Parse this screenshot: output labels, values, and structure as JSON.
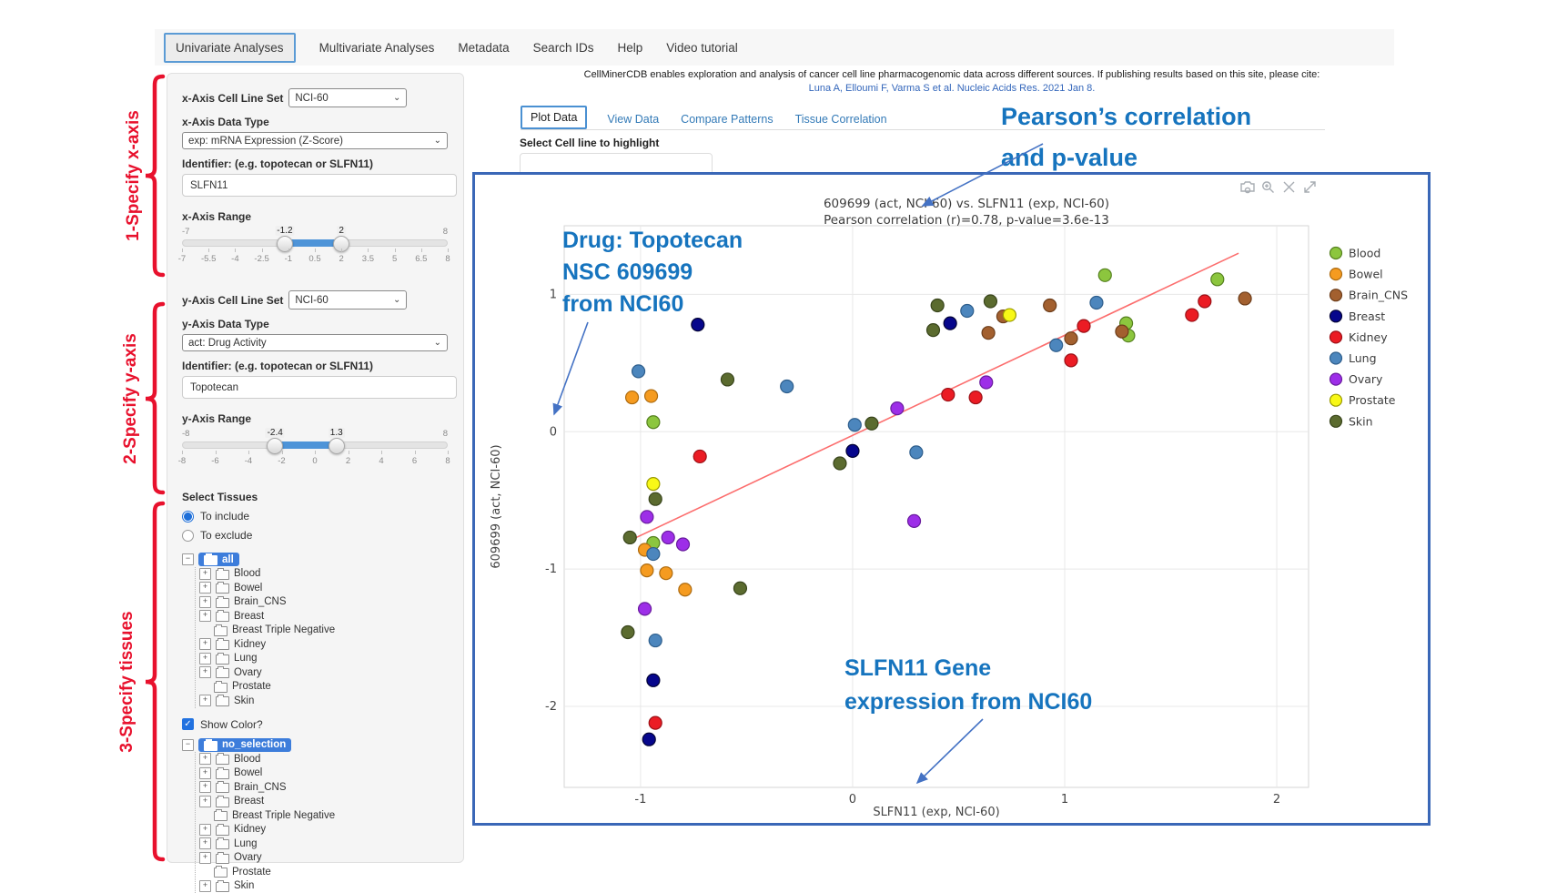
{
  "nav": {
    "items": [
      {
        "label": "Univariate Analyses",
        "active": true
      },
      {
        "label": "Multivariate Analyses",
        "active": false
      },
      {
        "label": "Metadata",
        "active": false
      },
      {
        "label": "Search IDs",
        "active": false
      },
      {
        "label": "Help",
        "active": false
      },
      {
        "label": "Video tutorial",
        "active": false
      }
    ]
  },
  "red_annotations": {
    "step1": "1-Specify x-axis",
    "step2": "2-Specify y-axis",
    "step3": "3-Specify tissues",
    "color": "#E8112D"
  },
  "sidebar": {
    "x_axis": {
      "cell_line_set_label": "x-Axis Cell Line Set",
      "cell_line_set_value": "NCI-60",
      "data_type_label": "x-Axis Data Type",
      "data_type_value": "exp: mRNA Expression (Z-Score)",
      "identifier_label": "Identifier: (e.g. topotecan or SLFN11)",
      "identifier_value": "SLFN11",
      "range_label": "x-Axis Range",
      "range": {
        "min": -7,
        "max": 8,
        "from": -1.2,
        "to": 2,
        "min_label": "-7",
        "max_label": "8",
        "from_label": "-1.2",
        "to_label": "2",
        "ticks": [
          "-7",
          "-5.5",
          "-4",
          "-2.5",
          "-1",
          "0.5",
          "2",
          "3.5",
          "5",
          "6.5",
          "8"
        ]
      }
    },
    "y_axis": {
      "cell_line_set_label": "y-Axis Cell Line Set",
      "cell_line_set_value": "NCI-60",
      "data_type_label": "y-Axis Data Type",
      "data_type_value": "act: Drug Activity",
      "identifier_label": "Identifier: (e.g. topotecan or SLFN11)",
      "identifier_value": "Topotecan",
      "range_label": "y-Axis Range",
      "range": {
        "min": -8,
        "max": 8,
        "from": -2.4,
        "to": 1.3,
        "min_label": "-8",
        "max_label": "8",
        "from_label": "-2.4",
        "to_label": "1.3",
        "ticks": [
          "-8",
          "-6",
          "-4",
          "-2",
          "0",
          "2",
          "4",
          "6",
          "8"
        ]
      }
    },
    "select_tissues_label": "Select Tissues",
    "tissue_options": [
      {
        "label": "To include",
        "selected": true
      },
      {
        "label": "To exclude",
        "selected": false
      }
    ],
    "tissue_tree_include": {
      "root": "all",
      "items": [
        {
          "label": "Blood",
          "expandable": true
        },
        {
          "label": "Bowel",
          "expandable": true
        },
        {
          "label": "Brain_CNS",
          "expandable": true
        },
        {
          "label": "Breast",
          "expandable": true
        },
        {
          "label": "Breast Triple Negative",
          "expandable": false
        },
        {
          "label": "Kidney",
          "expandable": true
        },
        {
          "label": "Lung",
          "expandable": true
        },
        {
          "label": "Ovary",
          "expandable": true
        },
        {
          "label": "Prostate",
          "expandable": false
        },
        {
          "label": "Skin",
          "expandable": true
        }
      ]
    },
    "show_color": {
      "label": "Show Color?",
      "checked": true
    },
    "tissue_tree_color": {
      "root": "no_selection",
      "items": [
        {
          "label": "Blood",
          "expandable": true
        },
        {
          "label": "Bowel",
          "expandable": true
        },
        {
          "label": "Brain_CNS",
          "expandable": true
        },
        {
          "label": "Breast",
          "expandable": true
        },
        {
          "label": "Breast Triple Negative",
          "expandable": false
        },
        {
          "label": "Kidney",
          "expandable": true
        },
        {
          "label": "Lung",
          "expandable": true
        },
        {
          "label": "Ovary",
          "expandable": true
        },
        {
          "label": "Prostate",
          "expandable": false
        },
        {
          "label": "Skin",
          "expandable": true
        }
      ]
    }
  },
  "citation": {
    "line1": "CellMinerCDB enables exploration and analysis of cancer cell line pharmacogenomic data across different sources. If publishing results based on this site, please cite:",
    "line2": "Luna A, Elloumi F, Varma S et al. Nucleic Acids Res. 2021 Jan 8."
  },
  "plot_tabs": [
    {
      "label": "Plot Data",
      "active": true
    },
    {
      "label": "View Data",
      "active": false
    },
    {
      "label": "Compare Patterns",
      "active": false
    },
    {
      "label": "Tissue Correlation",
      "active": false
    }
  ],
  "highlight": {
    "label": "Select Cell line to highlight",
    "value": ""
  },
  "blue_annotations": {
    "pearson_line1": "Pearson’s correlation",
    "pearson_line2": "and p-value",
    "drug_line1": "Drug: Topotecan",
    "drug_line2": "NSC 609699",
    "drug_line3": "from NCI60",
    "gene_line1": "SLFN11 Gene",
    "gene_line2": "expression from NCI60",
    "text_color": "#1674BE",
    "arrow_color": "#4472C4"
  },
  "modebar_icons": [
    "camera-icon",
    "zoom-in-icon",
    "pan-icon",
    "autoscale-icon"
  ],
  "chart_data": {
    "type": "scatter",
    "title": "609699 (act, NCI-60) vs. SLFN11 (exp, NCI-60)",
    "subtitle": "Pearson correlation (r)=0.78, p-value=3.6e-13",
    "pearson_r": 0.78,
    "p_value": "3.6e-13",
    "xlabel": "SLFN11 (exp, NCI-60)",
    "ylabel": "609699 (act, NCI-60)",
    "x_ticks": [
      -1,
      0,
      1,
      2
    ],
    "y_ticks": [
      1,
      0,
      -1,
      -2
    ],
    "xlim": [
      -1.36,
      2.15
    ],
    "ylim": [
      -2.59,
      1.5
    ],
    "grid": true,
    "legend_position": "right",
    "trend_line": {
      "x1": -1.02,
      "y1": -0.77,
      "x2": 1.82,
      "y2": 1.3,
      "color": "#FC6E6E"
    },
    "series": [
      {
        "name": "Blood",
        "color": "#8CC63E",
        "stroke": "#55801F",
        "points": [
          [
            -0.94,
            0.07
          ],
          [
            -0.94,
            -0.81
          ],
          [
            1.19,
            1.14
          ],
          [
            1.29,
            0.79
          ],
          [
            1.3,
            0.7
          ],
          [
            1.72,
            1.11
          ]
        ]
      },
      {
        "name": "Bowel",
        "color": "#F59B20",
        "stroke": "#AD6B10",
        "points": [
          [
            -1.04,
            0.25
          ],
          [
            -0.95,
            0.26
          ],
          [
            -0.98,
            -0.86
          ],
          [
            -0.97,
            -1.01
          ],
          [
            -0.88,
            -1.03
          ],
          [
            -0.79,
            -1.15
          ]
        ]
      },
      {
        "name": "Brain_CNS",
        "color": "#A3602F",
        "stroke": "#6D3D1A",
        "points": [
          [
            0.71,
            0.84
          ],
          [
            0.64,
            0.72
          ],
          [
            0.93,
            0.92
          ],
          [
            1.03,
            0.68
          ],
          [
            1.27,
            0.73
          ],
          [
            1.85,
            0.97
          ]
        ]
      },
      {
        "name": "Breast",
        "color": "#06068C",
        "stroke": "#020235",
        "points": [
          [
            -0.73,
            0.78
          ],
          [
            0.0,
            -0.14
          ],
          [
            0.46,
            0.79
          ],
          [
            -0.94,
            -1.81
          ],
          [
            -0.96,
            -2.24
          ]
        ]
      },
      {
        "name": "Kidney",
        "color": "#EB1C24",
        "stroke": "#9B1016",
        "points": [
          [
            -0.72,
            -0.18
          ],
          [
            0.45,
            0.27
          ],
          [
            0.58,
            0.25
          ],
          [
            1.03,
            0.52
          ],
          [
            1.09,
            0.77
          ],
          [
            1.6,
            0.85
          ],
          [
            1.66,
            0.95
          ],
          [
            -0.93,
            -2.12
          ]
        ]
      },
      {
        "name": "Lung",
        "color": "#4C86BD",
        "stroke": "#2E5E8C",
        "points": [
          [
            -1.01,
            0.44
          ],
          [
            -0.31,
            0.33
          ],
          [
            0.01,
            0.05
          ],
          [
            0.3,
            -0.15
          ],
          [
            0.54,
            0.88
          ],
          [
            0.96,
            0.63
          ],
          [
            1.15,
            0.94
          ],
          [
            -0.94,
            -0.89
          ],
          [
            -0.93,
            -1.52
          ]
        ]
      },
      {
        "name": "Ovary",
        "color": "#9D2EE8",
        "stroke": "#691C9E",
        "points": [
          [
            0.21,
            0.17
          ],
          [
            0.63,
            0.36
          ],
          [
            0.29,
            -0.65
          ],
          [
            -0.97,
            -0.62
          ],
          [
            -0.87,
            -0.77
          ],
          [
            -0.8,
            -0.82
          ],
          [
            -0.98,
            -1.29
          ]
        ]
      },
      {
        "name": "Prostate",
        "color": "#F8F817",
        "stroke": "#9A9A00",
        "points": [
          [
            0.74,
            0.85
          ],
          [
            -0.94,
            -0.38
          ]
        ]
      },
      {
        "name": "Skin",
        "color": "#5B6B2F",
        "stroke": "#39451C",
        "points": [
          [
            -0.59,
            0.38
          ],
          [
            0.4,
            0.92
          ],
          [
            0.38,
            0.74
          ],
          [
            0.65,
            0.95
          ],
          [
            0.09,
            0.06
          ],
          [
            -0.06,
            -0.23
          ],
          [
            -0.93,
            -0.49
          ],
          [
            -1.05,
            -0.77
          ],
          [
            -0.53,
            -1.14
          ],
          [
            -1.06,
            -1.46
          ]
        ]
      }
    ]
  },
  "colors": {
    "container_border": "#3A67B7",
    "active_tab_border": "#4A90D2",
    "nav_active_border": "#5B9BD5",
    "tree_selection": "#3D7DDB",
    "slider_bar": "#4E94D8"
  }
}
